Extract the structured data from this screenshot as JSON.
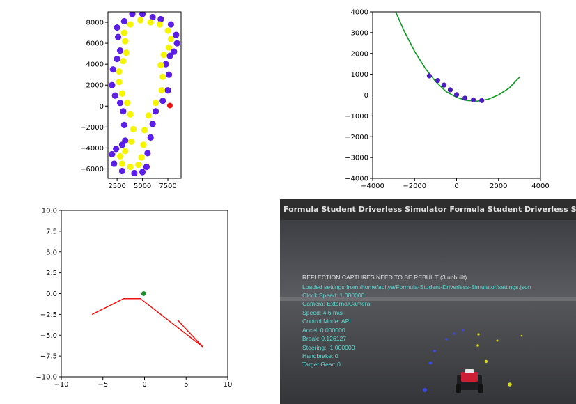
{
  "chart_data": [
    {
      "type": "scatter",
      "xlim": [
        1600,
        8800
      ],
      "ylim": [
        -6900,
        9000
      ],
      "x_ticks": [
        "2500",
        "5000",
        "7500"
      ],
      "x_tick_values": [
        2500,
        5000,
        7500
      ],
      "y_ticks": [
        "8000",
        "6000",
        "4000",
        "2000",
        "0",
        "−2000",
        "−4000",
        "−6000"
      ],
      "y_tick_values": [
        8000,
        6000,
        4000,
        2000,
        0,
        -2000,
        -4000,
        -6000
      ],
      "colors": {
        "outer": "#5b1ee6",
        "inner": "#f5f500",
        "car": "#ee1111"
      },
      "series": [
        {
          "values": [
            [
              3200,
              8100
            ],
            [
              4000,
              8800
            ],
            [
              5000,
              8800
            ],
            [
              6000,
              8500
            ],
            [
              6800,
              8300
            ],
            [
              7800,
              7800
            ],
            [
              8300,
              6800
            ],
            [
              8400,
              6000
            ],
            [
              8100,
              5200
            ],
            [
              7700,
              4800
            ],
            [
              7300,
              4000
            ],
            [
              7600,
              3000
            ],
            [
              7500,
              1500
            ],
            [
              7000,
              500
            ],
            [
              6300,
              -500
            ],
            [
              6000,
              -1700
            ],
            [
              5800,
              -3000
            ],
            [
              5500,
              -4500
            ],
            [
              5400,
              -5800
            ],
            [
              5000,
              -6300
            ],
            [
              4200,
              -6400
            ],
            [
              3000,
              -6200
            ],
            [
              2200,
              -5500
            ],
            [
              2000,
              -4600
            ],
            [
              2400,
              -4100
            ],
            [
              3000,
              -3700
            ],
            [
              3300,
              -3300
            ],
            [
              3200,
              -1800
            ],
            [
              3100,
              -500
            ],
            [
              2800,
              300
            ],
            [
              2300,
              1000
            ],
            [
              2000,
              2000
            ],
            [
              2100,
              3500
            ],
            [
              2500,
              4500
            ],
            [
              2800,
              5300
            ],
            [
              2600,
              6600
            ],
            [
              2500,
              7500
            ]
          ]
        },
        {
          "values": [
            [
              3800,
              7800
            ],
            [
              4800,
              8200
            ],
            [
              5800,
              8000
            ],
            [
              6700,
              7800
            ],
            [
              7500,
              7200
            ],
            [
              7800,
              6400
            ],
            [
              7600,
              5600
            ],
            [
              7100,
              4900
            ],
            [
              6800,
              3900
            ],
            [
              7000,
              2800
            ],
            [
              6900,
              1500
            ],
            [
              6300,
              300
            ],
            [
              5600,
              -900
            ],
            [
              5200,
              -2300
            ],
            [
              5100,
              -3700
            ],
            [
              4900,
              -4900
            ],
            [
              4600,
              -5600
            ],
            [
              3800,
              -5800
            ],
            [
              3000,
              -5500
            ],
            [
              2800,
              -4800
            ],
            [
              3300,
              -4300
            ],
            [
              3900,
              -3400
            ],
            [
              4100,
              -2200
            ],
            [
              3800,
              -800
            ],
            [
              3500,
              300
            ],
            [
              3000,
              1200
            ],
            [
              2700,
              2300
            ],
            [
              2700,
              3300
            ],
            [
              3100,
              4300
            ],
            [
              3400,
              5100
            ],
            [
              3300,
              6200
            ],
            [
              3200,
              7000
            ]
          ]
        },
        {
          "values": [
            [
              7700,
              50
            ]
          ]
        }
      ]
    },
    {
      "type": "line",
      "xlim": [
        -4000,
        4000
      ],
      "ylim": [
        -4000,
        4000
      ],
      "x_ticks": [
        "−4000",
        "−2000",
        "0",
        "2000",
        "4000"
      ],
      "x_tick_values": [
        -4000,
        -2000,
        0,
        2000,
        4000
      ],
      "y_ticks": [
        "4000",
        "3000",
        "2000",
        "1000",
        "0",
        "−1000",
        "−2000",
        "−3000",
        "−4000"
      ],
      "y_tick_values": [
        4000,
        3000,
        2000,
        1000,
        0,
        -1000,
        -2000,
        -3000,
        -4000
      ],
      "colors": {
        "line": "#0a9c1e",
        "points": "#4b1ec0"
      },
      "series": [
        {
          "values": [
            [
              -2900,
              4000
            ],
            [
              -2500,
              3080
            ],
            [
              -2000,
              2100
            ],
            [
              -1500,
              1300
            ],
            [
              -1000,
              650
            ],
            [
              -500,
              170
            ],
            [
              0,
              -110
            ],
            [
              500,
              -260
            ],
            [
              1000,
              -290
            ],
            [
              1500,
              -200
            ],
            [
              2000,
              10
            ],
            [
              2500,
              330
            ],
            [
              3000,
              860
            ]
          ]
        },
        {
          "values": [
            [
              -1300,
              920
            ],
            [
              -900,
              700
            ],
            [
              -600,
              480
            ],
            [
              -300,
              250
            ],
            [
              0,
              20
            ],
            [
              400,
              -150
            ],
            [
              800,
              -230
            ],
            [
              1200,
              -260
            ]
          ]
        }
      ]
    },
    {
      "type": "line",
      "xlim": [
        -10,
        10
      ],
      "ylim": [
        -10,
        10
      ],
      "x_ticks": [
        "−10",
        "−5",
        "0",
        "5",
        "10"
      ],
      "x_tick_values": [
        -10,
        -5,
        0,
        5,
        10
      ],
      "y_ticks": [
        "10.0",
        "7.5",
        "5.0",
        "2.5",
        "0.0",
        "−2.5",
        "−5.0",
        "−7.5",
        "−10.0"
      ],
      "y_tick_values": [
        10,
        7.5,
        5,
        2.5,
        0,
        -2.5,
        -5,
        -7.5,
        -10
      ],
      "colors": {
        "line": "#ee1111",
        "point": "#1a8f2a"
      },
      "series": [
        {
          "values": [
            [
              -6.3,
              -2.5
            ],
            [
              -2.5,
              -0.6
            ],
            [
              -0.5,
              -0.6
            ],
            [
              7,
              -6.4
            ],
            [
              4,
              -3.2
            ]
          ]
        },
        {
          "values": [
            [
              -0.1,
              0
            ]
          ]
        }
      ]
    }
  ],
  "simulator": {
    "window_title": "Formula Student Driverless Simulator Formula Student Driverless Simulator",
    "hud_lines": [
      "REFLECTION CAPTURES NEED TO BE REBUILT (3 unbuilt)",
      "Loaded settings from /home/aditya/Formula-Student-Driverless-Simulator/settings.json",
      "Clock Speed: 1.000000",
      "Camera: ExternalCamera",
      "Speed: 4.6 m\\s",
      "Control Mode: API",
      "Accel: 0.000000",
      "Break: 0.126127",
      "Steering: -1.000000",
      "Handbrake: 0",
      "Target Gear: 0"
    ],
    "colors": {
      "sky": "#4e5055",
      "ground": "#3a3b3e",
      "horizon": "#6c6e72",
      "hud_warn": "#e0e0e0",
      "hud_info": "#5fd7d0",
      "car": "#cc1f35"
    }
  }
}
